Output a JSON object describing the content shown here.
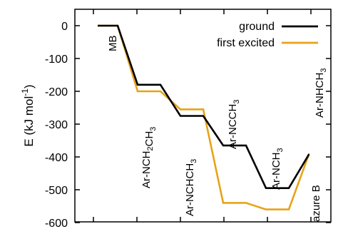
{
  "chart_data": {
    "type": "line",
    "ylabel": {
      "main": "E (kJ mol",
      "sup": "-1",
      "tail": ")"
    },
    "ylim": [
      -600,
      0
    ],
    "yticks": [
      0,
      -100,
      -200,
      -300,
      -400,
      -500,
      -600
    ],
    "ytick_labels": [
      "0",
      "-100",
      "-200",
      "-300",
      "-400",
      "-500",
      "-600"
    ],
    "grid": false,
    "legend_position": "top-right",
    "categories": [
      {
        "id": "MB",
        "parts": [
          [
            "MB",
            ""
          ]
        ]
      },
      {
        "id": "Ar-NCH2CH3",
        "parts": [
          [
            "Ar-NCH",
            ""
          ],
          [
            "2",
            "sub"
          ],
          [
            "CH",
            ""
          ],
          [
            "3",
            "sub"
          ]
        ]
      },
      {
        "id": "Ar-NCHCH3",
        "parts": [
          [
            "Ar-NCHCH",
            ""
          ],
          [
            "3",
            "sub"
          ]
        ]
      },
      {
        "id": "Ar-NCCH3",
        "parts": [
          [
            "Ar-NCCH",
            ""
          ],
          [
            "3",
            "sub"
          ]
        ]
      },
      {
        "id": "Ar-NCH3",
        "parts": [
          [
            "Ar-NCH",
            ""
          ],
          [
            "3",
            "sub"
          ]
        ]
      },
      {
        "id": "Ar-NHCH3",
        "parts": [
          [
            "Ar-NHCH",
            ""
          ],
          [
            "3",
            "sub"
          ]
        ]
      },
      {
        "id": "azure B",
        "parts": [
          [
            "azure B",
            ""
          ]
        ]
      }
    ],
    "series": [
      {
        "name": "ground",
        "color": "#000000",
        "values": [
          0,
          -180,
          -275,
          -365,
          -495,
          -393,
          -393
        ]
      },
      {
        "name": "first excited",
        "color": "#e8a317",
        "values": [
          0,
          -200,
          -255,
          -540,
          -560,
          -393,
          -393
        ]
      }
    ]
  }
}
